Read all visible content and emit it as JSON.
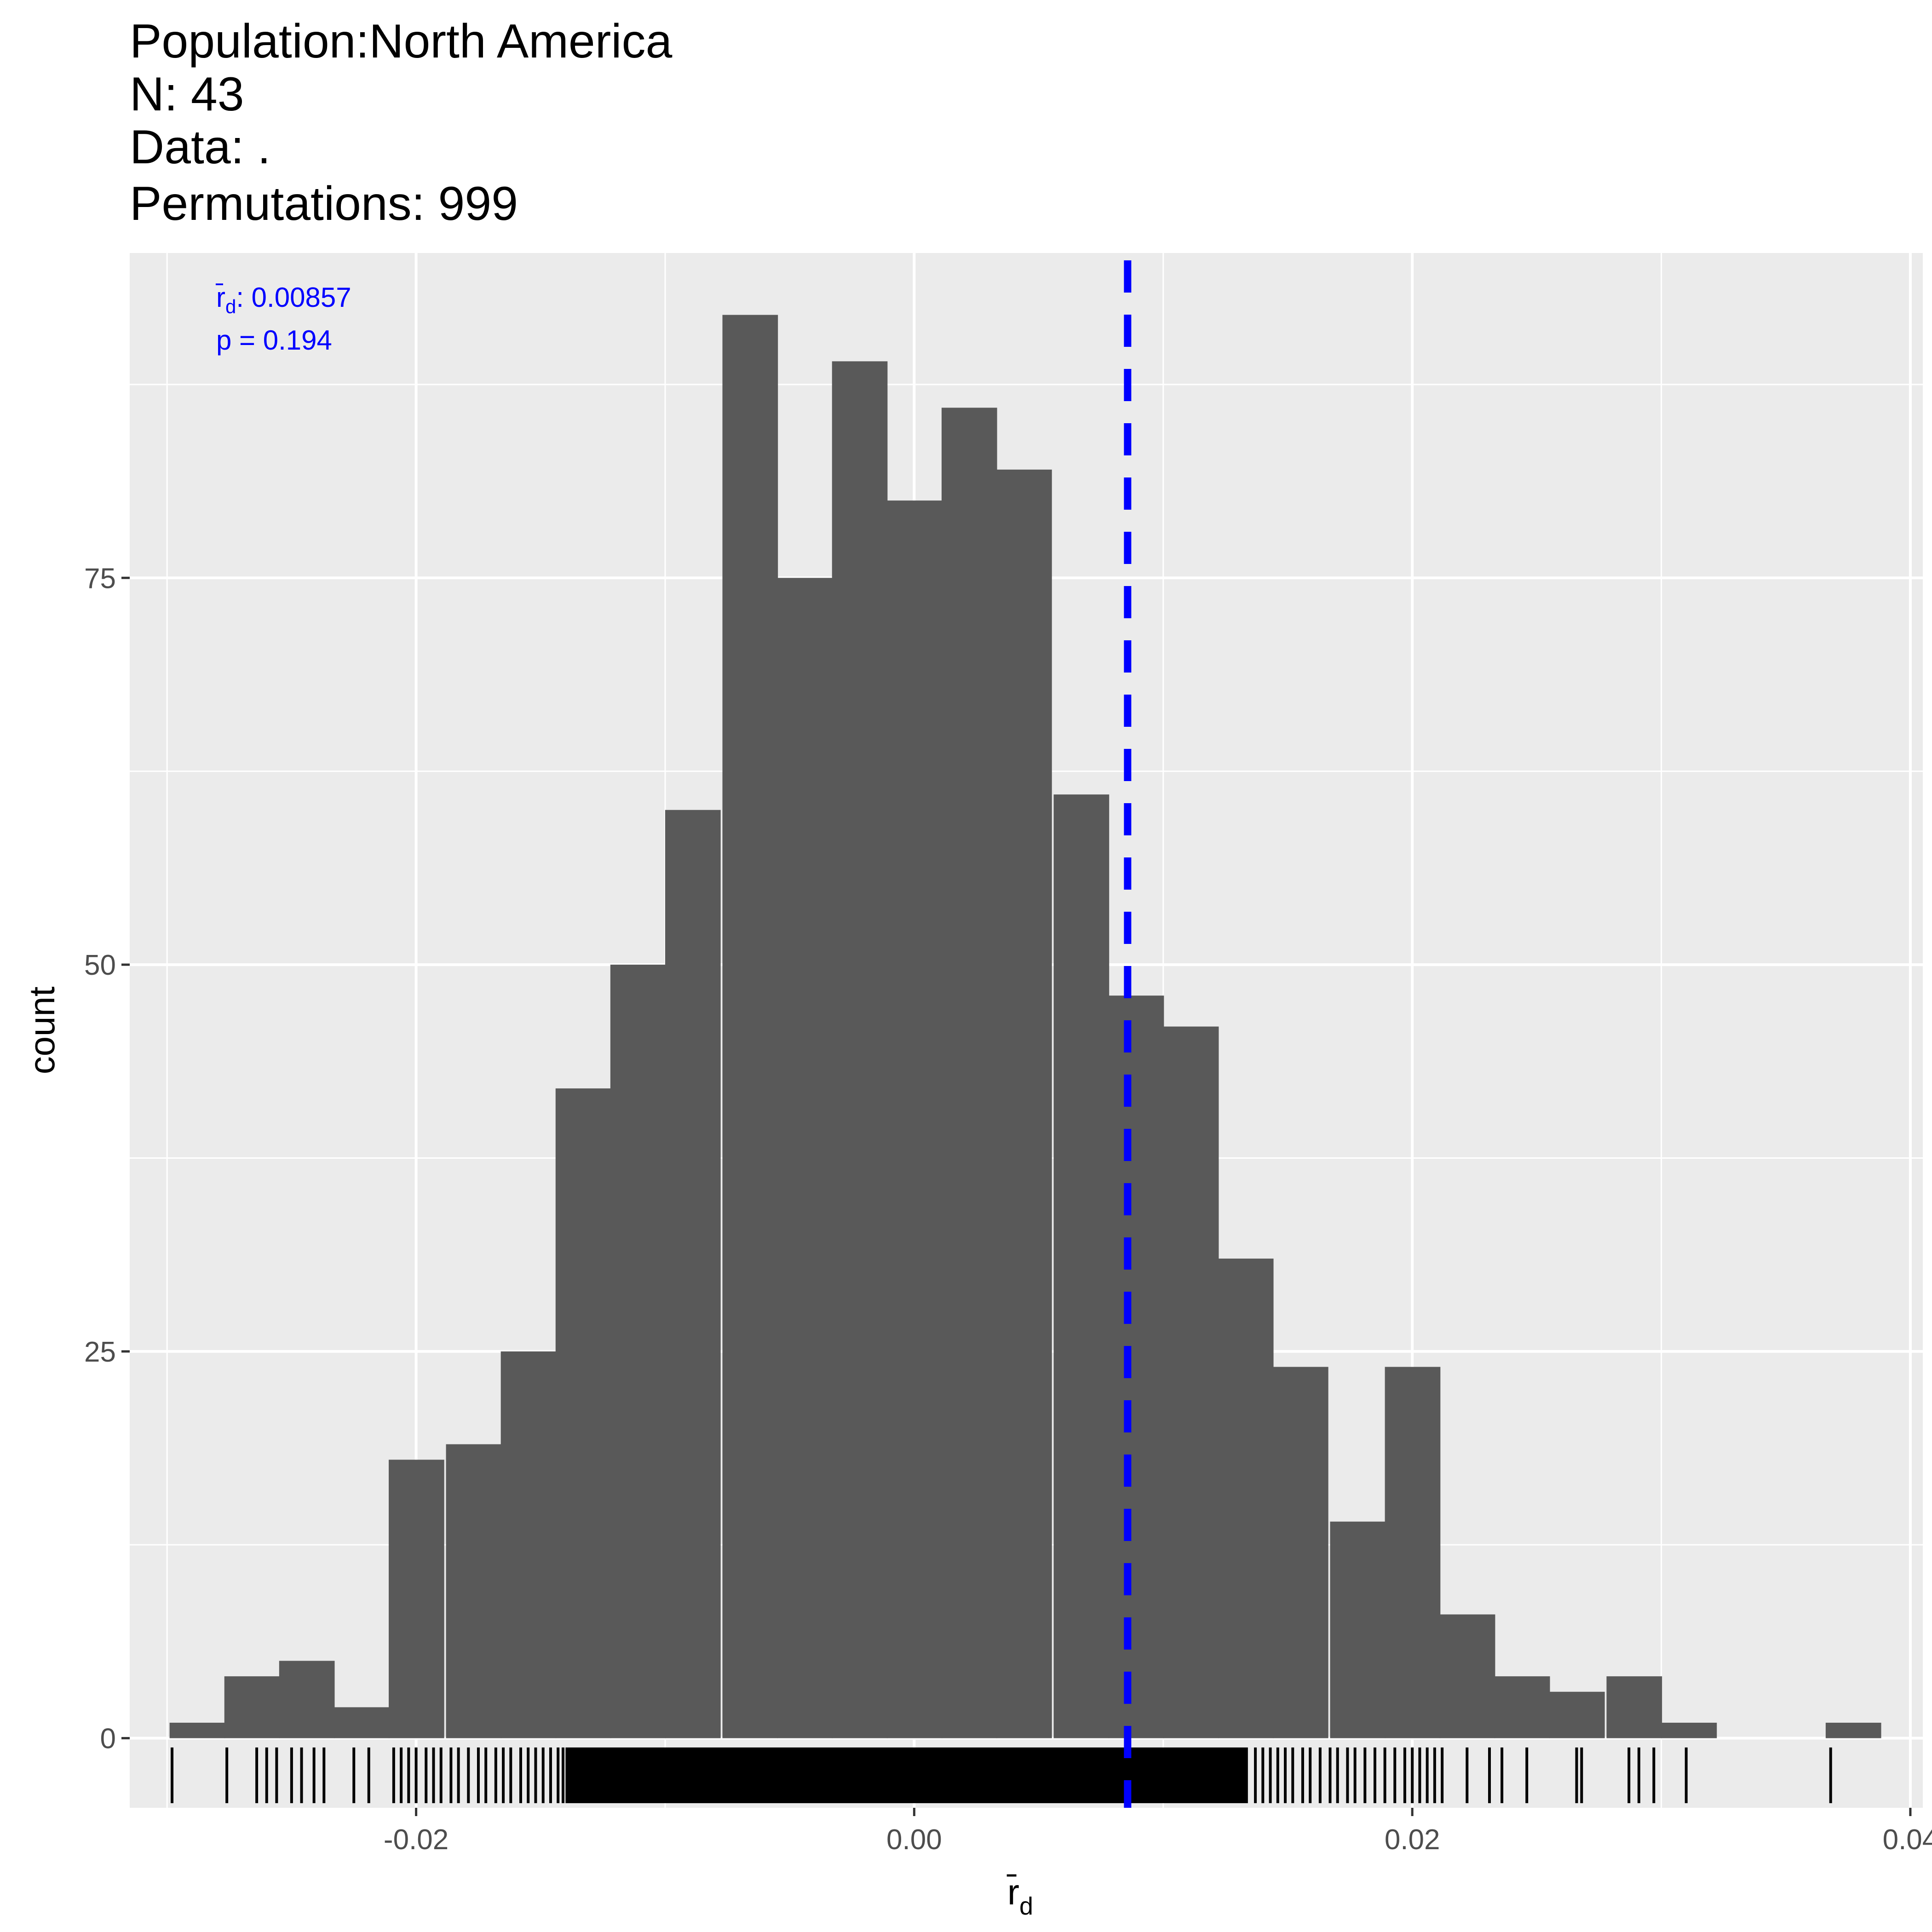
{
  "title_lines": [
    "Population:North America",
    "N: 43",
    "Data: .",
    "Permutations: 999"
  ],
  "chart_data": {
    "type": "bar",
    "subtype": "histogram",
    "xlabel": "r̄d",
    "ylabel": "count",
    "xlim": [
      -0.0315,
      0.0405
    ],
    "ylim": [
      -4.5,
      96
    ],
    "x_ticks": [
      -0.02,
      0.0,
      0.02,
      0.04
    ],
    "x_tick_labels": [
      "-0.02",
      "0.00",
      "0.02",
      "0.04"
    ],
    "y_ticks": [
      0,
      25,
      50,
      75
    ],
    "y_tick_labels": [
      "0",
      "25",
      "50",
      "75"
    ],
    "x_minor_ticks": [
      -0.03,
      -0.01,
      0.01,
      0.03
    ],
    "y_minor_ticks": [
      12.5,
      37.5,
      62.5,
      87.5
    ],
    "grid": true,
    "bin_width": 0.00222,
    "bins": [
      {
        "x0": -0.0299,
        "count": 1
      },
      {
        "x0": -0.0277,
        "count": 4
      },
      {
        "x0": -0.0255,
        "count": 5
      },
      {
        "x0": -0.0233,
        "count": 2
      },
      {
        "x0": -0.0211,
        "count": 18
      },
      {
        "x0": -0.0188,
        "count": 19
      },
      {
        "x0": -0.0166,
        "count": 25
      },
      {
        "x0": -0.0144,
        "count": 42
      },
      {
        "x0": -0.0122,
        "count": 50
      },
      {
        "x0": -0.01,
        "count": 60
      },
      {
        "x0": -0.0077,
        "count": 92
      },
      {
        "x0": -0.0055,
        "count": 75
      },
      {
        "x0": -0.0033,
        "count": 89
      },
      {
        "x0": -0.0011,
        "count": 80
      },
      {
        "x0": 0.0011,
        "count": 86
      },
      {
        "x0": 0.0033,
        "count": 82
      },
      {
        "x0": 0.0056,
        "count": 61
      },
      {
        "x0": 0.0078,
        "count": 48
      },
      {
        "x0": 0.01,
        "count": 46
      },
      {
        "x0": 0.0122,
        "count": 31
      },
      {
        "x0": 0.0144,
        "count": 24
      },
      {
        "x0": 0.0167,
        "count": 14
      },
      {
        "x0": 0.0189,
        "count": 24
      },
      {
        "x0": 0.0211,
        "count": 8
      },
      {
        "x0": 0.0233,
        "count": 4
      },
      {
        "x0": 0.0255,
        "count": 3
      },
      {
        "x0": 0.0278,
        "count": 4
      },
      {
        "x0": 0.03,
        "count": 1
      },
      {
        "x0": 0.0322,
        "count": 0
      },
      {
        "x0": 0.0344,
        "count": 0
      },
      {
        "x0": 0.0366,
        "count": 1
      }
    ],
    "rug_x": [
      -0.0298,
      -0.0276,
      -0.0264,
      -0.026,
      -0.0256,
      -0.025,
      -0.0246,
      -0.0241,
      -0.0237,
      -0.0225,
      -0.0219,
      -0.0209,
      -0.0206,
      -0.0203,
      -0.02,
      -0.0196,
      -0.0193,
      -0.019,
      -0.0186,
      -0.0183,
      -0.0179,
      -0.0175,
      -0.0172,
      -0.0168,
      -0.0165,
      -0.0162,
      -0.0158,
      -0.0155,
      -0.0152,
      -0.0149,
      -0.0146,
      -0.0143,
      -0.0141
    ],
    "rug_dense_range": [
      -0.014,
      0.0134
    ],
    "rug_x_right": [
      0.0137,
      0.014,
      0.0143,
      0.0146,
      0.0149,
      0.0152,
      0.0156,
      0.0159,
      0.0163,
      0.0167,
      0.017,
      0.0174,
      0.0177,
      0.0181,
      0.0185,
      0.0189,
      0.0193,
      0.0197,
      0.02,
      0.0203,
      0.0206,
      0.0209,
      0.0212,
      0.0222,
      0.0231,
      0.0236,
      0.0246,
      0.0266,
      0.0268,
      0.0287,
      0.0291,
      0.0297,
      0.031,
      0.0368
    ],
    "reference_line": {
      "x": 0.00857,
      "color": "#0000ff",
      "style": "dashed"
    },
    "annotation": {
      "stat_symbol": "r̄d",
      "stat_value": ": 0.00857",
      "p_text": "p = 0.194",
      "color": "#0000ff"
    },
    "colors": {
      "panel": "#ebebeb",
      "grid": "#ffffff",
      "bar": "#595959",
      "rug": "#000000"
    }
  }
}
